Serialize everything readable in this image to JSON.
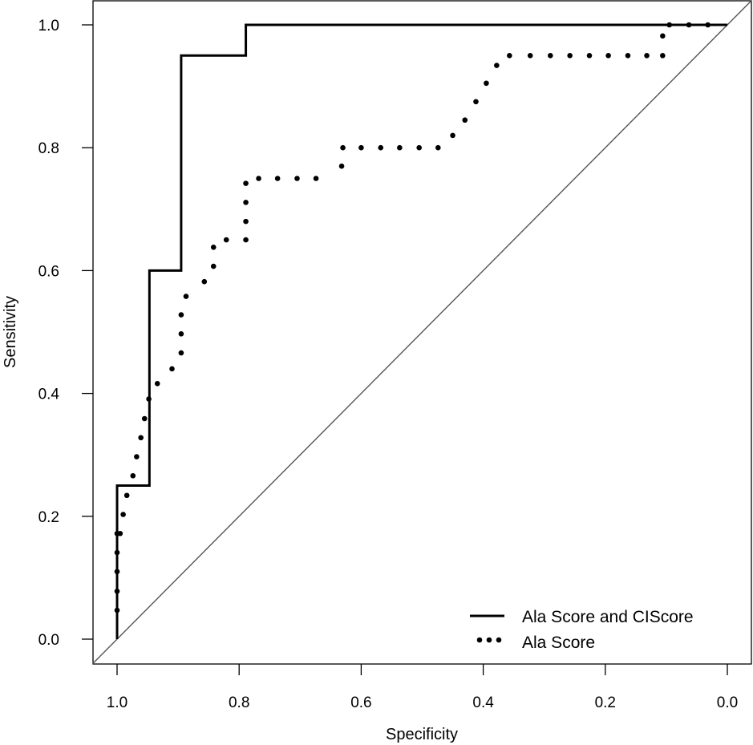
{
  "chart_data": {
    "type": "line",
    "title": "",
    "xlabel": "Specificity",
    "ylabel": "Sensitivity",
    "xlim": [
      1.0,
      0.0
    ],
    "ylim": [
      0.0,
      1.0
    ],
    "x_reversed": true,
    "grid": false,
    "legend_position": "bottom-right",
    "x_ticks": [
      "1.0",
      "0.8",
      "0.6",
      "0.4",
      "0.2",
      "0.0"
    ],
    "y_ticks": [
      "0.0",
      "0.2",
      "0.4",
      "0.6",
      "0.8",
      "1.0"
    ],
    "diagonal": {
      "from": [
        1.0,
        0.0
      ],
      "to": [
        0.0,
        1.0
      ],
      "color": "#555555"
    },
    "series": [
      {
        "name": "Ala Score and CIScore",
        "style": "solid",
        "color": "#000000",
        "x": [
          1.0,
          1.0,
          0.947,
          0.947,
          0.895,
          0.895,
          0.789,
          0.789,
          0.0
        ],
        "y": [
          0.0,
          0.25,
          0.25,
          0.6,
          0.6,
          0.95,
          0.95,
          1.0,
          1.0
        ]
      },
      {
        "name": "Ala Score",
        "style": "dotted",
        "color": "#000000",
        "x": [
          1.0,
          1.0,
          1.0,
          1.0,
          1.0,
          0.995,
          0.99,
          0.984,
          0.974,
          0.968,
          0.961,
          0.955,
          0.948,
          0.934,
          0.91,
          0.895,
          0.895,
          0.895,
          0.887,
          0.857,
          0.842,
          0.842,
          0.821,
          0.789,
          0.789,
          0.789,
          0.789,
          0.768,
          0.737,
          0.705,
          0.674,
          0.632,
          0.63,
          0.6,
          0.568,
          0.537,
          0.505,
          0.474,
          0.45,
          0.43,
          0.412,
          0.395,
          0.378,
          0.357,
          0.323,
          0.29,
          0.258,
          0.226,
          0.195,
          0.163,
          0.132,
          0.106,
          0.106,
          0.095,
          0.063,
          0.032
        ],
        "y": [
          0.047,
          0.078,
          0.11,
          0.141,
          0.172,
          0.172,
          0.203,
          0.234,
          0.266,
          0.297,
          0.328,
          0.359,
          0.391,
          0.416,
          0.44,
          0.466,
          0.497,
          0.528,
          0.558,
          0.582,
          0.607,
          0.638,
          0.65,
          0.65,
          0.68,
          0.711,
          0.742,
          0.75,
          0.75,
          0.75,
          0.75,
          0.77,
          0.8,
          0.8,
          0.8,
          0.8,
          0.8,
          0.8,
          0.82,
          0.845,
          0.875,
          0.905,
          0.934,
          0.95,
          0.95,
          0.95,
          0.95,
          0.95,
          0.95,
          0.95,
          0.95,
          0.95,
          0.982,
          1.0,
          1.0,
          1.0
        ]
      }
    ]
  }
}
